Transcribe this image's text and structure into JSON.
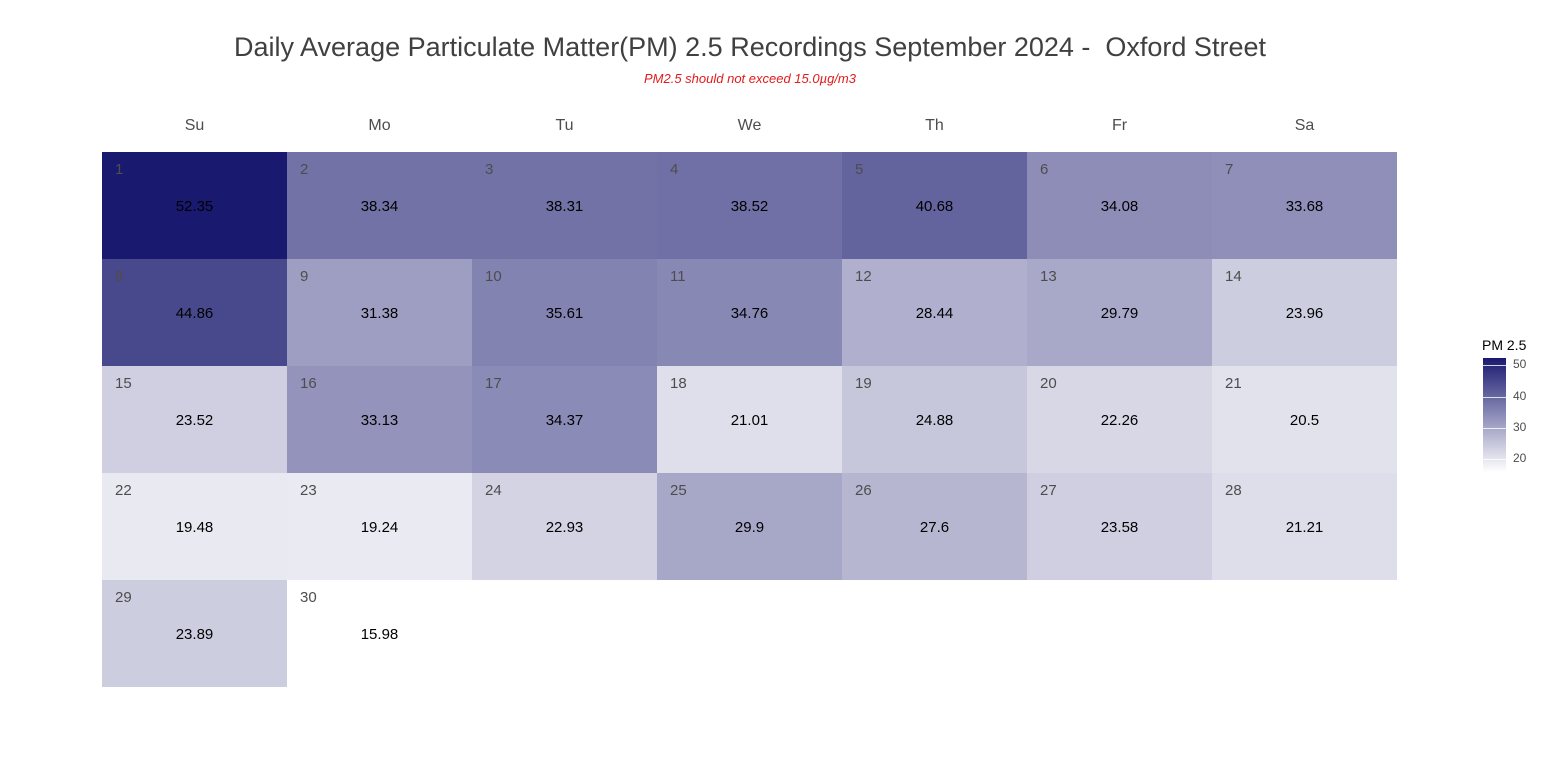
{
  "chart_data": {
    "type": "heatmap",
    "title": "Daily Average Particulate Matter(PM) 2.5 Recordings September 2024 -  Oxford Street",
    "subtitle": "PM2.5 should not exceed 15.0µg/m3",
    "weekdays": [
      "Su",
      "Mo",
      "Tu",
      "We",
      "Th",
      "Fr",
      "Sa"
    ],
    "first_weekday_index": 0,
    "days": [
      1,
      2,
      3,
      4,
      5,
      6,
      7,
      8,
      9,
      10,
      11,
      12,
      13,
      14,
      15,
      16,
      17,
      18,
      19,
      20,
      21,
      22,
      23,
      24,
      25,
      26,
      27,
      28,
      29,
      30
    ],
    "values": [
      52.35,
      38.34,
      38.31,
      38.52,
      40.68,
      34.08,
      33.68,
      44.86,
      31.38,
      35.61,
      34.76,
      28.44,
      29.79,
      23.96,
      23.52,
      33.13,
      34.37,
      21.01,
      24.88,
      22.26,
      20.5,
      19.48,
      19.24,
      22.93,
      29.9,
      27.6,
      23.58,
      21.21,
      23.89,
      15.98
    ],
    "legend": {
      "title": "PM 2.5",
      "ticks": [
        20,
        30,
        40,
        50
      ],
      "range": [
        15.98,
        52.35
      ]
    },
    "colors": {
      "low": "#ffffff",
      "high": "#191970"
    }
  }
}
